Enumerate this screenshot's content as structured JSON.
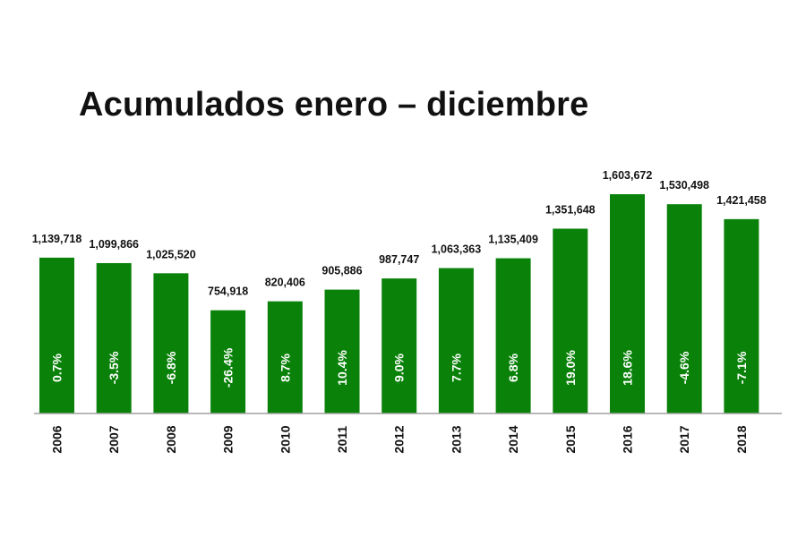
{
  "chart_data": {
    "type": "bar",
    "title": "Acumulados enero – diciembre",
    "categories": [
      "2006",
      "2007",
      "2008",
      "2009",
      "2010",
      "2011",
      "2012",
      "2013",
      "2014",
      "2015",
      "2016",
      "2017",
      "2018"
    ],
    "values": [
      1139718,
      1099866,
      1025520,
      754918,
      820406,
      905886,
      987747,
      1063363,
      1135409,
      1351648,
      1603672,
      1530498,
      1421458
    ],
    "value_labels": [
      "1,139,718",
      "1,099,866",
      "1,025,520",
      "754,918",
      "820,406",
      "905,886",
      "987,747",
      "1,063,363",
      "1,135,409",
      "1,351,648",
      "1,603,672",
      "1,530,498",
      "1,421,458"
    ],
    "pct_labels": [
      "0.7%",
      "-3.5%",
      "-6.8%",
      "-26.4%",
      "8.7%",
      "10.4%",
      "9.0%",
      "7.7%",
      "6.8%",
      "19.0%",
      "18.6%",
      "-4.6%",
      "-7.1%"
    ],
    "ylim": [
      0,
      1603672
    ],
    "grid": false,
    "legend": "none",
    "bar_color": "#0a820a",
    "axis_color": "#a0a0a0"
  }
}
